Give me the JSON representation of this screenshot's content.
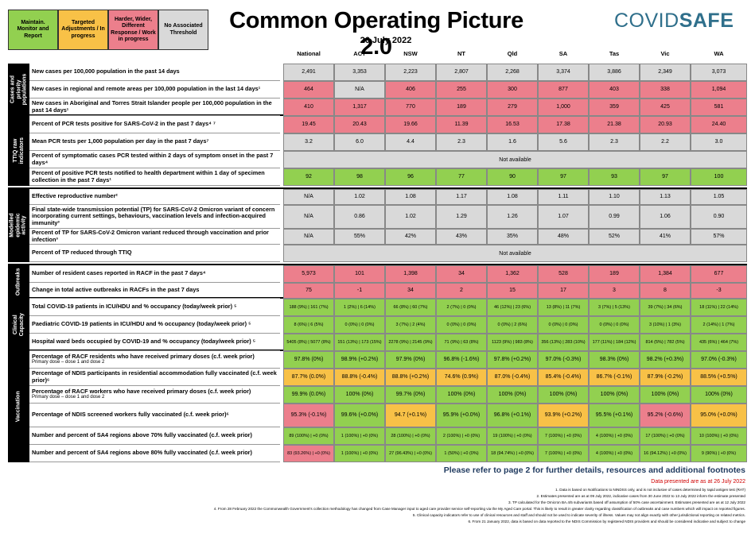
{
  "legend": [
    {
      "label": "Maintain. Monitor and Report",
      "color": "#92d050"
    },
    {
      "label": "Targeted Adjustments / In progress",
      "color": "#f8c147"
    },
    {
      "label": "Harder, Wider, Different Response / Work in progress",
      "color": "#ec7f8c"
    },
    {
      "label": "No Associated Threshold",
      "color": "#d9d9d9"
    }
  ],
  "title": "Common Operating Picture 2.0",
  "date": "26 July 2022",
  "logo": {
    "part1": "COVID",
    "part2": "SAFE"
  },
  "columns": [
    "National",
    "ACT",
    "NSW",
    "NT",
    "Qld",
    "SA",
    "Tas",
    "Vic",
    "WA"
  ],
  "sections": {
    "cases": "Cases and priority populations",
    "ttiq": "TTIQ raw indicators",
    "modelled": "Modelled epidemic activity",
    "outbreaks": "Outbreaks",
    "clinical": "Clinical Capacity",
    "vaccination": "Vaccination"
  },
  "rows": {
    "r1": {
      "label": "New cases per 100,000 population in the past 14 days",
      "values": [
        "2,491",
        "3,353",
        "2,223",
        "2,807",
        "2,268",
        "3,374",
        "3,886",
        "2,349",
        "3,073"
      ]
    },
    "r2": {
      "label": "New cases in regional and remote areas per 100,000 population in the last 14 days¹",
      "values": [
        "464",
        "N/A",
        "406",
        "255",
        "300",
        "877",
        "403",
        "338",
        "1,094"
      ]
    },
    "r3": {
      "label": "New cases in Aboriginal and Torres Strait Islander people per 100,000 population in the past 14 days¹",
      "values": [
        "410",
        "1,317",
        "770",
        "189",
        "279",
        "1,000",
        "359",
        "425",
        "581"
      ]
    },
    "r4": {
      "label": "Percent of PCR tests positive for SARS-CoV-2 in the past 7 days⁴ ⁷",
      "values": [
        "19.45",
        "20.43",
        "19.66",
        "11.39",
        "16.53",
        "17.38",
        "21.38",
        "20.93",
        "24.40"
      ]
    },
    "r5": {
      "label": "Mean PCR tests per 1,000 population per day in the past 7 days⁷",
      "values": [
        "3.2",
        "6.0",
        "4.4",
        "2.3",
        "1.6",
        "5.6",
        "2.3",
        "2.2",
        "3.0"
      ]
    },
    "r6": {
      "label": "Percent of symptomatic cases PCR tested within 2 days of symptom onset in the past 7 days⁴",
      "na": "Not available"
    },
    "r7": {
      "label": "Percent of positive PCR tests notified to health department within 1 day of specimen collection in the past 7 days¹",
      "values": [
        "92",
        "98",
        "96",
        "77",
        "90",
        "97",
        "93",
        "97",
        "100"
      ]
    },
    "r8": {
      "label": "Effective reproductive number²",
      "values": [
        "N/A",
        "1.02",
        "1.08",
        "1.17",
        "1.08",
        "1.11",
        "1.10",
        "1.13",
        "1.05"
      ]
    },
    "r9": {
      "label": "Final state-wide transmission potential (TP) for SARS-CoV-2 Omicron variant of concern incorporating current settings, behaviours, vaccination levels and infection-acquired immunity³",
      "values": [
        "N/A",
        "0.86",
        "1.02",
        "1.29",
        "1.26",
        "1.07",
        "0.99",
        "1.06",
        "0.90"
      ]
    },
    "r10": {
      "label": "Percent of TP for SARS-CoV-2 Omicron variant reduced through vaccination and prior infection³",
      "values": [
        "N/A",
        "55%",
        "42%",
        "43%",
        "35%",
        "48%",
        "52%",
        "41%",
        "57%"
      ]
    },
    "r11": {
      "label": "Percent of TP reduced through TTIQ",
      "na": "Not available"
    },
    "r12": {
      "label": "Number of resident cases reported in RACF in the past 7 days⁴",
      "values": [
        "5,973",
        "101",
        "1,398",
        "34",
        "1,362",
        "528",
        "189",
        "1,384",
        "677"
      ]
    },
    "r13": {
      "label": "Change in total active outbreaks in RACFs in the past 7 days",
      "values": [
        "75",
        "-1",
        "34",
        "2",
        "15",
        "17",
        "3",
        "8",
        "-3"
      ]
    },
    "r14": {
      "label": "Total COVID-19 patients in ICU/HDU and % occupancy (today/week prior) ⁵",
      "values": [
        "188 (9%) | 161 (7%)",
        "1 (2%) | 6 (14%)",
        "66 (8%) | 60 (7%)",
        "2 (7%) | 0 (0%)",
        "46 (12%) | 23 (6%)",
        "13 (8%) | 11 (7%)",
        "3 (7%) | 5 (13%)",
        "39 (7%) | 34 (6%)",
        "18 (11%) | 22 (14%)"
      ]
    },
    "r15": {
      "label": "Paediatric COVID-19 patients in ICU/HDU and % occupancy (today/week prior) ⁵",
      "values": [
        "8 (6%) | 6 (5%)",
        "0 (0%) | 0 (0%)",
        "3 (7%) | 2 (4%)",
        "0 (0%) | 0 (0%)",
        "0 (0%) | 2 (6%)",
        "0 (0%) | 0 (0%)",
        "0 (0%) | 0 (0%)",
        "3 (10%) | 1 (3%)",
        "2 (14%) | 1 (7%)"
      ]
    },
    "r16": {
      "label": "Hospital ward beds occupied by COVID-19 and % occupancy (today/week prior) ⁵",
      "values": [
        "5405 (8%) | 5077 (8%)",
        "151 (13%) | 173 (15%)",
        "2278 (9%) | 2145 (9%)",
        "71 (9%) | 63 (8%)",
        "1123 (9%) | 983 (8%)",
        "356 (13%) | 283 (10%)",
        "177 (11%) | 184 (12%)",
        "814 (5%) | 782 (5%)",
        "435 (6%) | 464 (7%)"
      ]
    },
    "r17": {
      "label": "Percentage of RACF residents who have received primary doses (c.f. week prior)",
      "sub": "Primary dose – dose 1 and dose 2",
      "values": [
        "97.8% (0%)",
        "98.9% (+0.2%)",
        "97.9% (0%)",
        "96.8% (-1.6%)",
        "97.8% (+0.2%)",
        "97.0% (-0.3%)",
        "98.3% (0%)",
        "98.2% (+0.3%)",
        "97.0% (-0.3%)"
      ]
    },
    "r18": {
      "label": "Percentage of NDIS participants in residential accommodation fully vaccinated (c.f. week prior)⁶",
      "values": [
        "87.7% (0.0%)",
        "88.8% (-0.4%)",
        "88.8% (+0.2%)",
        "74.6% (0.9%)",
        "87.0% (-0.4%)",
        "85.4% (-0.4%)",
        "86.7% (-0.1%)",
        "87.9% (-0.2%)",
        "88.5% (+0.5%)"
      ]
    },
    "r19": {
      "label": "Percentage of RACF workers who have received primary doses (c.f. week prior)",
      "sub": "Primary dose – dose 1 and dose 2",
      "values": [
        "99.9% (0.0%)",
        "100% (0%)",
        "99.7% (0%)",
        "100% (0%)",
        "100% (0%)",
        "100% (0%)",
        "100% (0%)",
        "100% (0%)",
        "100% (0%)"
      ]
    },
    "r20": {
      "label": "Percentage of NDIS screened workers fully vaccinated (c.f. week prior)⁶",
      "values": [
        "95.3% (-0.1%)",
        "99.6% (+0.0%)",
        "94.7 (+0.1%)",
        "95.9% (+0.0%)",
        "96.8% (+0.1%)",
        "93.9% (+0.2%)",
        "95.5% (+0.1%)",
        "95.2% (-0.6%)",
        "95.0% (+0.0%)"
      ]
    },
    "r21": {
      "label": "Number and percent of SA4 regions above 70% fully vaccinated (c.f. week prior)",
      "values": [
        "89 (100%) | +0 (0%)",
        "1 (100%) | +0 (0%)",
        "28 (100%) | +0 (0%)",
        "2 (100%) | +0 (0%)",
        "19 (100%) | +0 (0%)",
        "7 (100%) | +0 (0%)",
        "4 (100%) | +0 (0%)",
        "17 (100%) | +0 (0%)",
        "10 (100%) | +0 (0%)"
      ]
    },
    "r22": {
      "label": "Number and percent of SA4 regions above 80% fully vaccinated (c.f. week prior)",
      "values": [
        "83 (93.26%) | +0 (0%)",
        "1 (100%) | +0 (0%)",
        "27 (96.43%) | +0 (0%)",
        "1 (50%) | +0 (0%)",
        "18 (94.74%) | +0 (0%)",
        "7 (100%) | +0 (0%)",
        "4 (100%) | +0 (0%)",
        "16 (94.12%) | +0 (0%)",
        "9 (90%) | +0 (0%)"
      ]
    }
  },
  "footer": {
    "refer": "Please refer to page 2 for further details, resources and additional footnotes",
    "presented": "Data presented are as at 26 July 2022",
    "notes": [
      "1.   Data is based on Notifications to NINDSS only, and is not inclusive of cases determined by rapid antigen test (RAT)",
      "2. Estimates presented are as at 09 July 2022, indicative cases from 30 June 2022 to 13 July 2022 inform the estimate presented",
      "3. TP calculated for the Omicron BA.4/5 subvariants based off assumption of 50% case ascertainment. Estimates presented are as at 12 July 2022",
      "4. From 28 February 2022 the Commonwealth Government's collection methodology has changed from Case Manager input to aged care provider service self-reporting via the My Aged Care portal. This is likely to result in greater clarity regarding classification of outbreaks and case numbers which will impact on reported figures.",
      "5. Clinical capacity indicators refer to use of clinical resources and staff and should not be used to indicate severity of illness. Values may not align exactly with other jurisdictional reporting on related metrics.",
      "6. From 21 January 2022, data is based on data reported to the NDIS Commission by registered NDIS providers and should be considered indicative and subject to change"
    ]
  }
}
